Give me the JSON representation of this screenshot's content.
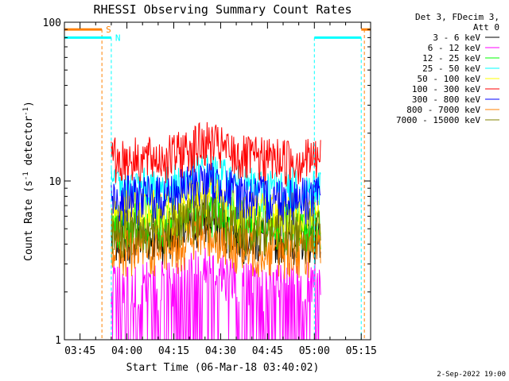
{
  "chart_data": {
    "type": "line",
    "title": "RHESSI Observing Summary Count Rates",
    "xlabel": "Start Time (06-Mar-18 03:40:02)",
    "ylabel": "Count Rate (s^-1 detector^-1)",
    "ylabel_parts": [
      "Count Rate (s",
      "-1",
      " detector",
      "-1",
      ")"
    ],
    "y_scale": "log",
    "ylim": [
      1,
      100
    ],
    "xlim": [
      "03:40",
      "05:18"
    ],
    "x_ticks": [
      "03:45",
      "04:00",
      "04:15",
      "04:30",
      "04:45",
      "05:00",
      "05:15"
    ],
    "y_ticks": [
      "1",
      "10",
      "100"
    ],
    "legend_header": [
      "Det 3, FDecim 3,",
      "Att 0"
    ],
    "legend_position": "right",
    "footer_date": "2-Sep-2022 19:00",
    "data_interval": [
      "03:55",
      "05:02"
    ],
    "series": [
      {
        "name": "3 - 6 keV",
        "color": "#000000",
        "level": 4.5
      },
      {
        "name": "6 - 12 keV",
        "color": "#ff00ff",
        "level": 2.3
      },
      {
        "name": "12 - 25 keV",
        "color": "#00ff00",
        "level": 5.5
      },
      {
        "name": "25 - 50 keV",
        "color": "#00ffff",
        "level": 9.0
      },
      {
        "name": "50 - 100 keV",
        "color": "#ffff00",
        "level": 6.5
      },
      {
        "name": "100 - 300 keV",
        "color": "#ff0000",
        "level": 14.0
      },
      {
        "name": "300 - 800 keV",
        "color": "#0000ff",
        "level": 8.0
      },
      {
        "name": "800 - 7000 keV",
        "color": "#ff8000",
        "level": 3.7
      },
      {
        "name": "7000 - 15000 keV",
        "color": "#808000",
        "level": 5.0
      }
    ],
    "flags": [
      {
        "label": "S",
        "color": "#ff8000",
        "value": 90,
        "intervals": [
          [
            "03:40",
            "03:52"
          ],
          [
            "05:15",
            "05:18"
          ]
        ],
        "edges": [
          "03:52",
          "05:16"
        ]
      },
      {
        "label": "N",
        "color": "#00ffff",
        "value": 80,
        "intervals": [
          [
            "03:40",
            "03:55"
          ],
          [
            "05:00",
            "05:15"
          ]
        ],
        "edges": [
          "03:40",
          "03:55",
          "05:00",
          "05:15"
        ]
      }
    ]
  }
}
